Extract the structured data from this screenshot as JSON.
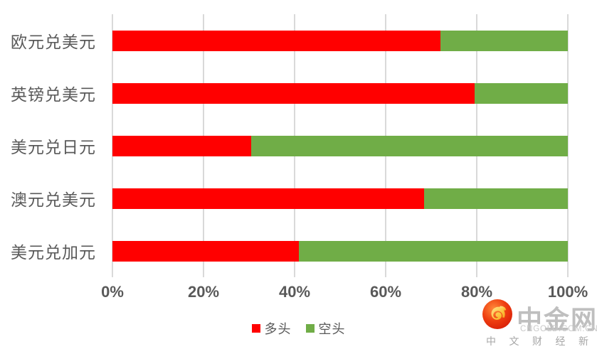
{
  "chart_data": {
    "type": "bar",
    "orientation": "horizontal",
    "stacked": true,
    "title": "",
    "xlabel": "",
    "ylabel": "",
    "categories": [
      "欧元兑美元",
      "英镑兑美元",
      "美元兑日元",
      "澳元兑美元",
      "美元兑加元"
    ],
    "series": [
      {
        "name": "多头",
        "color": "#ff0000",
        "values": [
          72,
          79.5,
          30.5,
          68.5,
          41
        ]
      },
      {
        "name": "空头",
        "color": "#70ad47",
        "values": [
          28,
          20.5,
          69.5,
          31.5,
          59
        ]
      }
    ],
    "x_ticks": [
      "0%",
      "20%",
      "40%",
      "60%",
      "80%",
      "100%"
    ],
    "xlim": [
      0,
      100
    ],
    "grid": "vertical-gridlines",
    "legend_position": "bottom-center"
  },
  "legend": {
    "items": [
      {
        "label": "多头",
        "color": "#ff0000"
      },
      {
        "label": "空头",
        "color": "#70ad47"
      }
    ]
  },
  "watermark": {
    "brand": "中金网",
    "domain": "CNGOLD.COM.CN",
    "tagline": "中 文 财 经 新 媒 体"
  },
  "colors": {
    "long": "#ff0000",
    "short": "#70ad47",
    "text": "#595959",
    "gridline": "#d9d9d9",
    "brand_text": "#bfbfbf"
  }
}
